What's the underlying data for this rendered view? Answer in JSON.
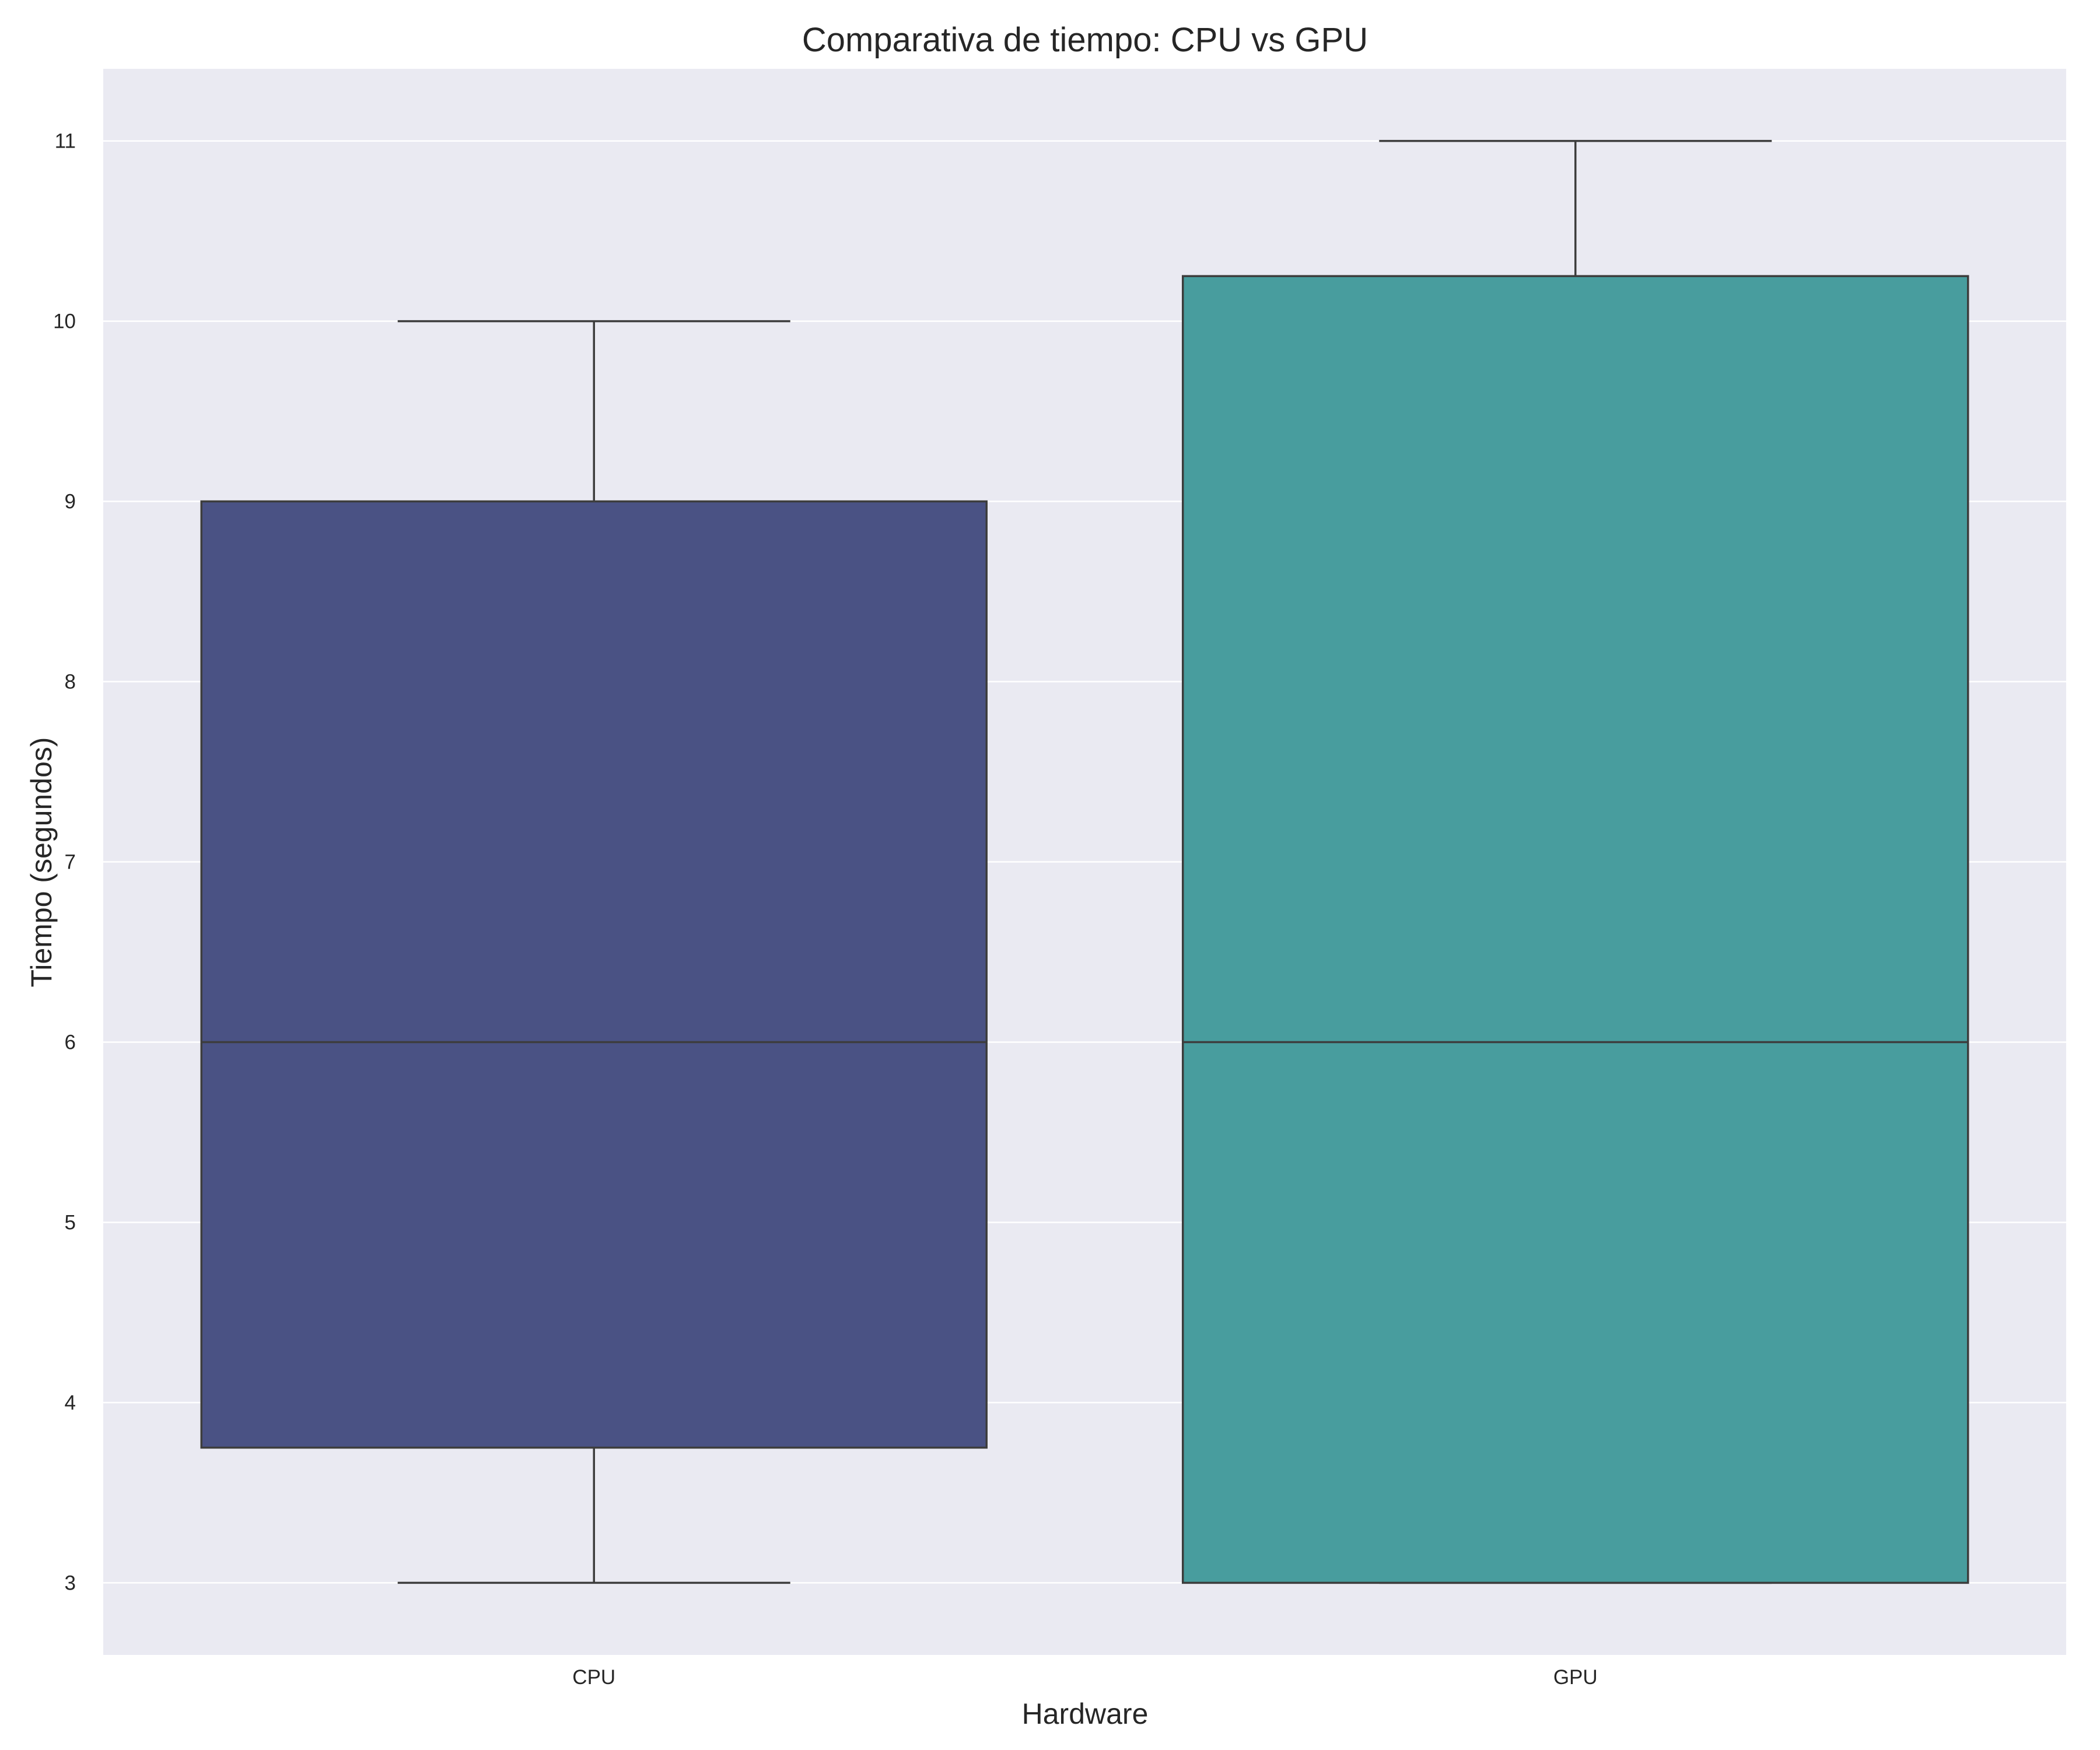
{
  "chart_data": {
    "type": "box",
    "title": "Comparativa de tiempo: CPU vs GPU",
    "xlabel": "Hardware",
    "ylabel": "Tiempo (segundos)",
    "ylim": [
      2.6,
      11.4
    ],
    "yticks": [
      3,
      4,
      5,
      6,
      7,
      8,
      9,
      10,
      11
    ],
    "categories": [
      "CPU",
      "GPU"
    ],
    "boxes": [
      {
        "category": "CPU",
        "whisker_low": 3,
        "q1": 3.75,
        "median": 6,
        "q3": 9,
        "whisker_high": 10,
        "color": "#4a5284"
      },
      {
        "category": "GPU",
        "whisker_low": 3,
        "q1": 3,
        "median": 6,
        "q3": 10.25,
        "whisker_high": 11,
        "color": "#489d9e"
      }
    ],
    "grid": true,
    "background": "#eaeaf2",
    "line_color": "#3d3d3d"
  }
}
